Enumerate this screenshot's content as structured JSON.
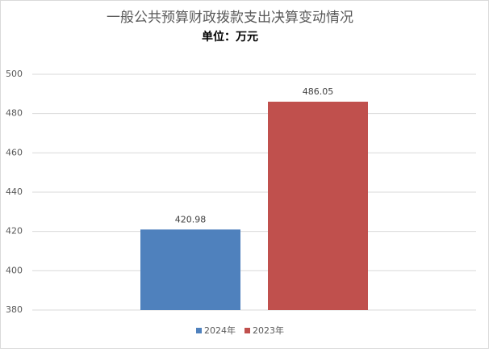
{
  "chart_data": {
    "type": "bar",
    "title": "一般公共预算财政拨款支出决算变动情况",
    "subtitle": "单位：万元",
    "categories": [
      null
    ],
    "series": [
      {
        "name": "2024年",
        "color": "#4f81bd",
        "values": [
          420.98
        ]
      },
      {
        "name": "2023年",
        "color": "#c0504d",
        "values": [
          486.05
        ]
      }
    ],
    "ylim": [
      380,
      500
    ],
    "yticks": [
      380,
      400,
      420,
      440,
      460,
      480,
      500
    ],
    "grid": true
  }
}
